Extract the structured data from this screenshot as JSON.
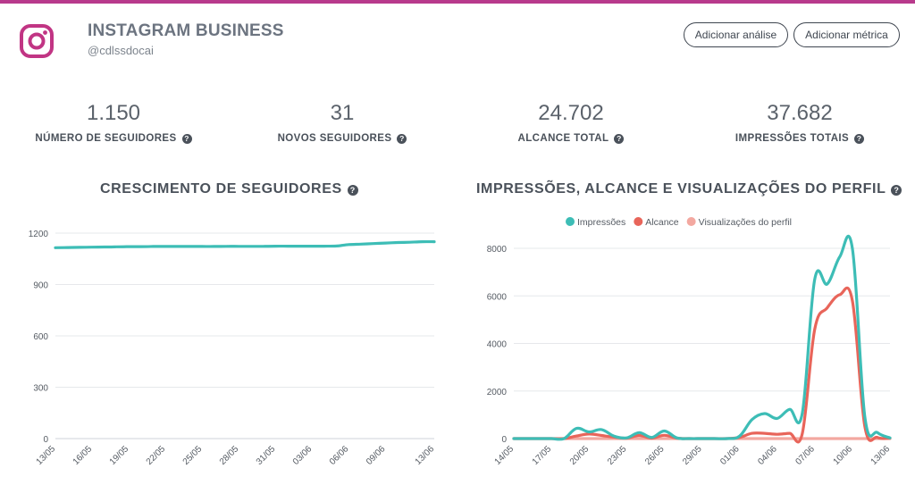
{
  "header": {
    "title": "INSTAGRAM BUSINESS",
    "handle": "@cdlssdocai",
    "icon": "instagram-icon",
    "brand_color": "#c13584"
  },
  "actions": {
    "add_analysis_label": "Adicionar análise",
    "add_metric_label": "Adicionar métrica"
  },
  "kpis": [
    {
      "value": "1.150",
      "label": "NÚMERO DE SEGUIDORES"
    },
    {
      "value": "31",
      "label": "NOVOS SEGUIDORES"
    },
    {
      "value": "24.702",
      "label": "ALCANCE TOTAL"
    },
    {
      "value": "37.682",
      "label": "IMPRESSÕES TOTAIS"
    }
  ],
  "help_glyph": "?",
  "chart_data": [
    {
      "type": "line",
      "title": "CRESCIMENTO DE SEGUIDORES",
      "x": [
        "13/05",
        "14/05",
        "15/05",
        "16/05",
        "17/05",
        "18/05",
        "19/05",
        "20/05",
        "21/05",
        "22/05",
        "23/05",
        "24/05",
        "25/05",
        "26/05",
        "27/05",
        "28/05",
        "29/05",
        "30/05",
        "31/05",
        "01/06",
        "02/06",
        "03/06",
        "04/06",
        "05/06",
        "06/06",
        "07/06",
        "08/06",
        "09/06",
        "10/06",
        "11/06",
        "12/06",
        "13/06"
      ],
      "xticks": [
        "13/05",
        "16/05",
        "19/05",
        "22/05",
        "25/05",
        "28/05",
        "31/05",
        "03/06",
        "06/06",
        "09/06",
        "13/06"
      ],
      "series": [
        {
          "color": "#3dbdb6",
          "values": [
            1115,
            1116,
            1117,
            1118,
            1119,
            1120,
            1121,
            1121,
            1122,
            1122,
            1122,
            1122,
            1122,
            1122,
            1123,
            1123,
            1123,
            1123,
            1124,
            1124,
            1124,
            1124,
            1124,
            1125,
            1133,
            1136,
            1139,
            1142,
            1145,
            1147,
            1150,
            1150
          ]
        }
      ],
      "yticks": [
        0,
        300,
        600,
        900,
        1200
      ],
      "ylim": [
        0,
        1200
      ]
    },
    {
      "type": "line",
      "title": "IMPRESSÕES, ALCANCE E VISUALIZAÇÕES DO PERFIL",
      "x": [
        "14/05",
        "15/05",
        "16/05",
        "17/05",
        "18/05",
        "19/05",
        "20/05",
        "21/05",
        "22/05",
        "23/05",
        "24/05",
        "25/05",
        "26/05",
        "27/05",
        "28/05",
        "29/05",
        "30/05",
        "31/05",
        "01/06",
        "02/06",
        "03/06",
        "04/06",
        "05/06",
        "06/06",
        "07/06",
        "08/06",
        "09/06",
        "10/06",
        "11/06",
        "12/06",
        "13/06"
      ],
      "xticks": [
        "14/05",
        "17/05",
        "20/05",
        "23/05",
        "26/05",
        "29/05",
        "01/06",
        "04/06",
        "07/06",
        "10/06",
        "13/06"
      ],
      "series": [
        {
          "name": "Impressões",
          "color": "#3dbdb6",
          "values": [
            0,
            0,
            0,
            0,
            0,
            430,
            280,
            380,
            100,
            30,
            250,
            50,
            320,
            30,
            0,
            0,
            0,
            0,
            100,
            800,
            1050,
            850,
            1230,
            1050,
            6700,
            6500,
            7650,
            8000,
            900,
            250,
            30
          ]
        },
        {
          "name": "Alcance",
          "color": "#e8655a",
          "values": [
            0,
            0,
            0,
            0,
            0,
            110,
            190,
            130,
            60,
            20,
            130,
            20,
            140,
            20,
            0,
            0,
            0,
            0,
            50,
            220,
            220,
            180,
            220,
            200,
            4600,
            5500,
            6050,
            5800,
            500,
            50,
            20
          ]
        },
        {
          "name": "Visualizações do perfil",
          "color": "#f3a8a0",
          "values": [
            0,
            0,
            0,
            0,
            0,
            0,
            0,
            0,
            0,
            0,
            0,
            0,
            0,
            0,
            0,
            0,
            0,
            0,
            0,
            0,
            0,
            0,
            0,
            0,
            0,
            0,
            0,
            0,
            0,
            0,
            0
          ]
        }
      ],
      "yticks": [
        0,
        2000,
        4000,
        6000,
        8000
      ],
      "ylim": [
        0,
        8000
      ],
      "legend": "top"
    }
  ]
}
